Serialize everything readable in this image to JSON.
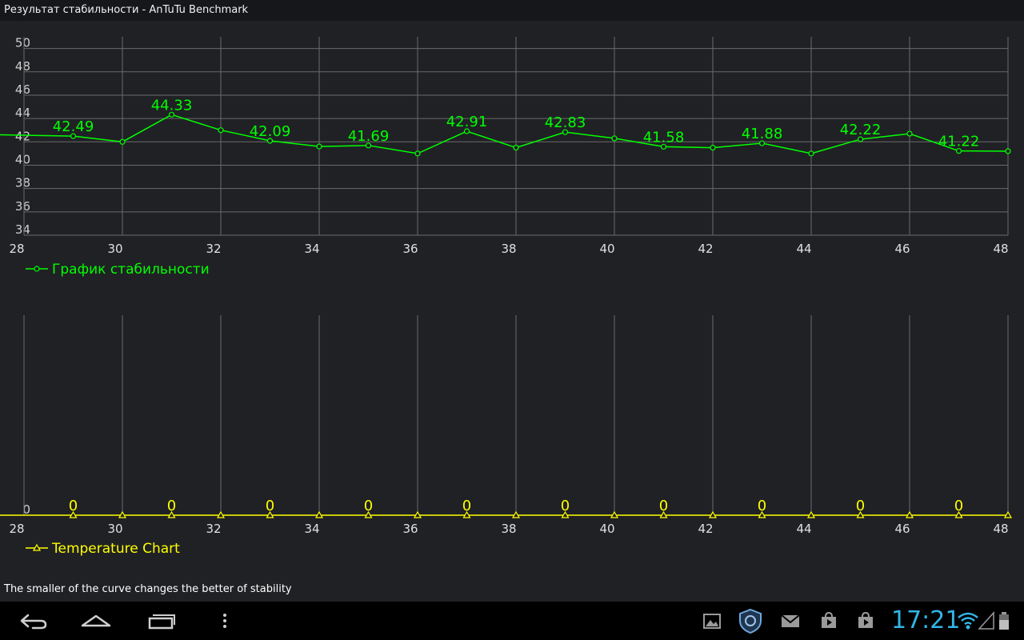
{
  "window": {
    "title": "Результат стабильности - AnTuTu Benchmark"
  },
  "footer_note": "The smaller of the curve changes the better of stability",
  "status_bar": {
    "time": "17:21"
  },
  "icons": {
    "nav": [
      "back-icon",
      "home-icon",
      "recent-apps-icon",
      "menu-icon"
    ],
    "tray": [
      "gallery-icon",
      "antutu-shield-icon",
      "gmail-icon",
      "play-store-icon",
      "play-store-icon-2",
      "wifi-icon",
      "signal-icon",
      "battery-icon"
    ]
  },
  "colors": {
    "stability": "#00ff00",
    "temperature": "#ffff00",
    "grid": "#6a6a6a",
    "accent": "#33b5e5"
  },
  "chart_data": [
    {
      "type": "line",
      "legend": "График стабильности",
      "x": [
        28,
        29,
        30,
        31,
        32,
        33,
        34,
        35,
        36,
        37,
        38,
        39,
        40,
        41,
        42,
        43,
        44,
        45,
        46,
        47,
        48
      ],
      "x_ticks": [
        "28",
        "30",
        "32",
        "34",
        "36",
        "38",
        "40",
        "42",
        "44",
        "46",
        "48"
      ],
      "y_ticks": [
        "34",
        "36",
        "38",
        "40",
        "42",
        "44",
        "46",
        "48",
        "50"
      ],
      "xlim": [
        28,
        48
      ],
      "ylim": [
        34,
        51
      ],
      "series": [
        {
          "values": [
            42.6,
            42.49,
            42.0,
            44.33,
            43.0,
            42.09,
            41.6,
            41.69,
            41.0,
            42.91,
            41.5,
            42.83,
            42.3,
            41.58,
            41.5,
            41.88,
            41.0,
            42.22,
            42.7,
            41.22,
            41.2
          ]
        }
      ],
      "data_labels": [
        {
          "x": 29,
          "text": "42.49"
        },
        {
          "x": 31,
          "text": "44.33"
        },
        {
          "x": 33,
          "text": "42.09"
        },
        {
          "x": 35,
          "text": "41.69"
        },
        {
          "x": 37,
          "text": "42.91"
        },
        {
          "x": 39,
          "text": "42.83"
        },
        {
          "x": 41,
          "text": "41.58"
        },
        {
          "x": 43,
          "text": "41.88"
        },
        {
          "x": 45,
          "text": "42.22"
        },
        {
          "x": 47,
          "text": "41.22"
        }
      ]
    },
    {
      "type": "line",
      "legend": "Temperature Chart",
      "x": [
        28,
        29,
        30,
        31,
        32,
        33,
        34,
        35,
        36,
        37,
        38,
        39,
        40,
        41,
        42,
        43,
        44,
        45,
        46,
        47,
        48
      ],
      "x_ticks": [
        "28",
        "30",
        "32",
        "34",
        "36",
        "38",
        "40",
        "42",
        "44",
        "46",
        "48"
      ],
      "y_ticks": [
        "0"
      ],
      "xlim": [
        28,
        48
      ],
      "ylim": [
        0,
        1
      ],
      "series": [
        {
          "values": [
            0,
            0,
            0,
            0,
            0,
            0,
            0,
            0,
            0,
            0,
            0,
            0,
            0,
            0,
            0,
            0,
            0,
            0,
            0,
            0,
            0
          ]
        }
      ],
      "data_labels": [
        {
          "x": 29,
          "text": "0"
        },
        {
          "x": 31,
          "text": "0"
        },
        {
          "x": 33,
          "text": "0"
        },
        {
          "x": 35,
          "text": "0"
        },
        {
          "x": 37,
          "text": "0"
        },
        {
          "x": 39,
          "text": "0"
        },
        {
          "x": 41,
          "text": "0"
        },
        {
          "x": 43,
          "text": "0"
        },
        {
          "x": 45,
          "text": "0"
        },
        {
          "x": 47,
          "text": "0"
        }
      ]
    }
  ]
}
